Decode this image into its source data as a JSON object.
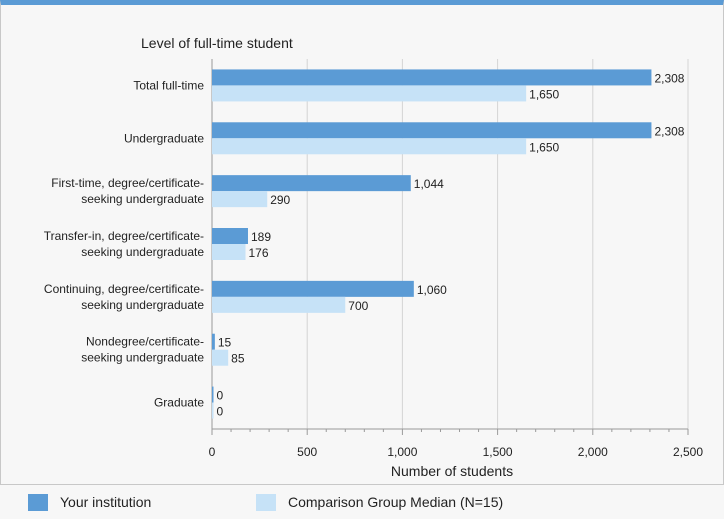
{
  "chart_data": {
    "type": "bar",
    "orientation": "horizontal",
    "title": "Level of full-time student",
    "xlabel": "Number of students",
    "xlim": [
      0,
      2500
    ],
    "xticks": [
      0,
      500,
      1000,
      1500,
      2000,
      2500
    ],
    "xtick_labels": [
      "0",
      "500",
      "1,000",
      "1,500",
      "2,000",
      "2,500"
    ],
    "grid": true,
    "legend_position": "bottom",
    "categories": [
      [
        "Total full-time"
      ],
      [
        "Undergraduate"
      ],
      [
        "First-time, degree/certificate-",
        "seeking undergraduate"
      ],
      [
        "Transfer-in, degree/certificate-",
        "seeking undergraduate"
      ],
      [
        "Continuing, degree/certificate-",
        "seeking undergraduate"
      ],
      [
        "Nondegree/certificate-",
        "seeking undergraduate"
      ],
      [
        "Graduate"
      ]
    ],
    "series": [
      {
        "name": "Your institution",
        "color": "#5b9bd5",
        "values": [
          2308,
          2308,
          1044,
          189,
          1060,
          15,
          0
        ],
        "labels": [
          "2,308",
          "2,308",
          "1,044",
          "189",
          "1,060",
          "15",
          "0"
        ]
      },
      {
        "name": "Comparison Group Median (N=15)",
        "color": "#c6e2f7",
        "values": [
          1650,
          1650,
          290,
          176,
          700,
          85,
          0
        ],
        "labels": [
          "1,650",
          "1,650",
          "290",
          "176",
          "700",
          "85",
          "0"
        ]
      }
    ]
  }
}
